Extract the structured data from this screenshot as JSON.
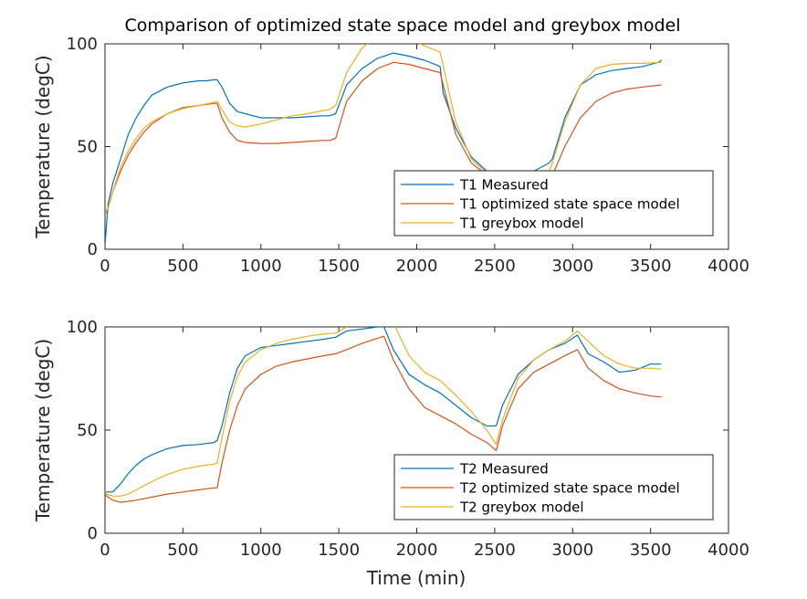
{
  "chart_data": [
    {
      "type": "line",
      "title": "Comparison of optimized state space model and greybox model",
      "xlabel": "",
      "ylabel": "Temperature (degC)",
      "xlim": [
        0,
        4000
      ],
      "ylim": [
        0,
        100
      ],
      "xticks": [
        0,
        500,
        1000,
        1500,
        2000,
        2500,
        3000,
        3500,
        4000
      ],
      "yticks": [
        0,
        50,
        100
      ],
      "legend_position": "bottom-right",
      "grid": false,
      "series": [
        {
          "name": "T1 Measured",
          "color": "#0072bd",
          "x": [
            0,
            20,
            50,
            100,
            150,
            200,
            250,
            300,
            350,
            400,
            450,
            500,
            550,
            600,
            650,
            700,
            720,
            750,
            800,
            850,
            900,
            950,
            1000,
            1100,
            1200,
            1300,
            1400,
            1440,
            1480,
            1550,
            1650,
            1750,
            1850,
            1950,
            2050,
            2150,
            2170,
            2250,
            2350,
            2450,
            2550,
            2650,
            2750,
            2850,
            2870,
            2950,
            3050,
            3150,
            3250,
            3350,
            3450,
            3550,
            3570
          ],
          "y": [
            2,
            22,
            32,
            44,
            56,
            64,
            70,
            75,
            77,
            79,
            80,
            81,
            81.5,
            82,
            82,
            82.5,
            82.5,
            79,
            71,
            67,
            66,
            65,
            64,
            64,
            64,
            64.5,
            65,
            65,
            66,
            80,
            88,
            93,
            95.5,
            94,
            92,
            89,
            76,
            59,
            45,
            38,
            36,
            36,
            38,
            42,
            44,
            64,
            80,
            85,
            87,
            88,
            89,
            91,
            92
          ]
        },
        {
          "name": "T1 optimized state space model",
          "color": "#d95319",
          "x": [
            0,
            20,
            50,
            100,
            150,
            200,
            250,
            300,
            400,
            500,
            600,
            700,
            720,
            750,
            800,
            850,
            900,
            1000,
            1100,
            1200,
            1300,
            1400,
            1440,
            1480,
            1550,
            1650,
            1750,
            1850,
            1950,
            2050,
            2150,
            2250,
            2350,
            2450,
            2550,
            2650,
            2750,
            2850,
            2870,
            2950,
            3050,
            3150,
            3250,
            3350,
            3450,
            3570
          ],
          "y": [
            17,
            20,
            28,
            38,
            46,
            52,
            57,
            61,
            66,
            69,
            70,
            71,
            71,
            64,
            57,
            53,
            52,
            51.5,
            51.5,
            52,
            52.5,
            53,
            53,
            54,
            72,
            82,
            88,
            91,
            90,
            88,
            86,
            56,
            42,
            36,
            32,
            31,
            32,
            34,
            36,
            50,
            64,
            72,
            76,
            78,
            79,
            80
          ]
        },
        {
          "name": "T1 greybox model",
          "color": "#edb120",
          "x": [
            0,
            20,
            50,
            100,
            150,
            200,
            250,
            300,
            400,
            500,
            600,
            700,
            720,
            750,
            800,
            850,
            900,
            1000,
            1100,
            1200,
            1300,
            1400,
            1440,
            1480,
            1550,
            1650,
            1750,
            1850,
            1950,
            2050,
            2150,
            2250,
            2350,
            2450,
            2550,
            2650,
            2750,
            2850,
            2870,
            2950,
            3050,
            3150,
            3250,
            3350,
            3450,
            3570
          ],
          "y": [
            18,
            20,
            28,
            40,
            48,
            54,
            59,
            62,
            66,
            68.5,
            70,
            71.5,
            72,
            68,
            62,
            60,
            59.5,
            61,
            63,
            65,
            66,
            67.5,
            68,
            70,
            86,
            98,
            104,
            107.5,
            103,
            99,
            96,
            62,
            44,
            37,
            34,
            33,
            35,
            38,
            42,
            62,
            80,
            88,
            90,
            90.5,
            90.5,
            91
          ]
        }
      ]
    },
    {
      "type": "line",
      "title": "",
      "xlabel": "Time (min)",
      "ylabel": "Temperature (degC)",
      "xlim": [
        0,
        4000
      ],
      "ylim": [
        0,
        100
      ],
      "xticks": [
        0,
        500,
        1000,
        1500,
        2000,
        2500,
        3000,
        3500,
        4000
      ],
      "yticks": [
        0,
        50,
        100
      ],
      "legend_position": "bottom-right",
      "grid": false,
      "series": [
        {
          "name": "T2 Measured",
          "color": "#0072bd",
          "x": [
            0,
            10,
            50,
            100,
            150,
            200,
            250,
            300,
            400,
            500,
            600,
            700,
            720,
            750,
            800,
            850,
            900,
            1000,
            1100,
            1200,
            1300,
            1400,
            1480,
            1550,
            1650,
            1750,
            1790,
            1850,
            1950,
            2050,
            2150,
            2250,
            2350,
            2450,
            2510,
            2550,
            2650,
            2750,
            2850,
            2950,
            3030,
            3100,
            3200,
            3300,
            3400,
            3500,
            3570
          ],
          "y": [
            19,
            20,
            20,
            24,
            29,
            33,
            36,
            38,
            41,
            42.5,
            43,
            44,
            45,
            52,
            68,
            80,
            86,
            90,
            91,
            92,
            93,
            94,
            95,
            98,
            99,
            100,
            100,
            89,
            77,
            72,
            68,
            62,
            56,
            52,
            52,
            62,
            77,
            84,
            89,
            92,
            96,
            87,
            83,
            78,
            79,
            82,
            82
          ]
        },
        {
          "name": "T2 optimized state space model",
          "color": "#d95319",
          "x": [
            0,
            10,
            50,
            100,
            150,
            200,
            300,
            400,
            500,
            600,
            700,
            720,
            750,
            800,
            850,
            900,
            1000,
            1100,
            1200,
            1300,
            1400,
            1480,
            1550,
            1650,
            1750,
            1790,
            1850,
            1950,
            2050,
            2150,
            2250,
            2350,
            2450,
            2510,
            2550,
            2650,
            2750,
            2850,
            2950,
            3030,
            3100,
            3200,
            3300,
            3400,
            3500,
            3570
          ],
          "y": [
            19,
            18,
            16,
            15,
            15.5,
            16,
            17.5,
            19,
            20,
            21,
            22,
            22,
            34,
            50,
            62,
            70,
            77,
            81,
            83,
            84.5,
            86,
            87,
            89,
            92,
            94.5,
            95.5,
            84,
            70,
            61,
            57,
            53,
            48,
            44,
            40,
            52,
            70,
            78,
            82,
            86,
            89,
            80,
            74,
            70,
            68,
            66.5,
            66
          ]
        },
        {
          "name": "T2 greybox model",
          "color": "#edb120",
          "x": [
            0,
            10,
            50,
            100,
            150,
            200,
            300,
            400,
            500,
            600,
            700,
            720,
            750,
            800,
            850,
            900,
            1000,
            1100,
            1200,
            1300,
            1400,
            1480,
            1550,
            1650,
            1750,
            1790,
            1850,
            1950,
            2050,
            2150,
            2250,
            2350,
            2450,
            2510,
            2550,
            2650,
            2750,
            2850,
            2950,
            3030,
            3100,
            3200,
            3300,
            3400,
            3500,
            3570
          ],
          "y": [
            20,
            19,
            18,
            18,
            19,
            21,
            25,
            28.5,
            31,
            32.5,
            33.5,
            34,
            46,
            64,
            76,
            83,
            89,
            92,
            94,
            95.5,
            96.5,
            97,
            100,
            105,
            109,
            111,
            102,
            86,
            78,
            74,
            67,
            59,
            50,
            43,
            55,
            75,
            84,
            89,
            93,
            98,
            93,
            86,
            82,
            80,
            80,
            79.5
          ]
        }
      ]
    }
  ]
}
